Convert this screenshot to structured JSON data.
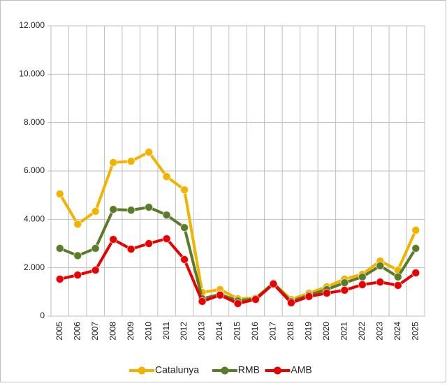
{
  "chart_data": {
    "type": "line",
    "categories": [
      "2005",
      "2006",
      "2007",
      "2008",
      "2009",
      "2010",
      "2011",
      "2012",
      "2013",
      "2014",
      "2015",
      "2016",
      "2017",
      "2018",
      "2019",
      "2020",
      "2021",
      "2022",
      "2023",
      "2024",
      "2025"
    ],
    "series": [
      {
        "name": "Catalunya",
        "color": "#f0b400",
        "values": [
          5050,
          3800,
          4330,
          6350,
          6400,
          6780,
          5770,
          5220,
          980,
          1100,
          720,
          750,
          1360,
          690,
          950,
          1210,
          1530,
          1730,
          2280,
          1900,
          3550
        ]
      },
      {
        "name": "RMB",
        "color": "#5b7b29",
        "values": [
          2800,
          2500,
          2800,
          4410,
          4380,
          4500,
          4180,
          3660,
          720,
          900,
          630,
          720,
          1360,
          610,
          870,
          1100,
          1380,
          1620,
          2080,
          1620,
          2800
        ]
      },
      {
        "name": "AMB",
        "color": "#e60000",
        "values": [
          1530,
          1700,
          1900,
          3170,
          2770,
          3000,
          3200,
          2340,
          610,
          870,
          520,
          690,
          1330,
          550,
          810,
          950,
          1070,
          1300,
          1410,
          1270,
          1790
        ]
      }
    ],
    "ylim": [
      0,
      12000
    ],
    "yticks": [
      0,
      {
        "value": 2000,
        "label": "2.000"
      },
      {
        "value": 4000,
        "label": "4.000"
      },
      {
        "value": 6000,
        "label": "6.000"
      },
      {
        "value": 8000,
        "label": "8.000"
      },
      {
        "value": 10000,
        "label": "10.000"
      },
      {
        "value": 12000,
        "label": "12.000"
      }
    ],
    "grid": true,
    "legend": "bottom"
  }
}
